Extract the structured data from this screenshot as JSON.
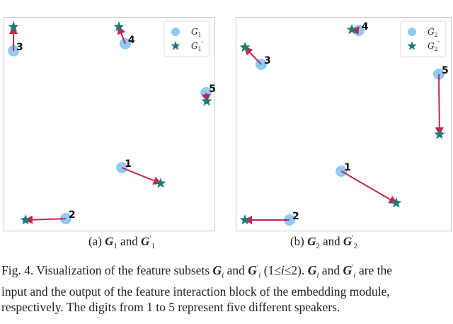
{
  "chart_data": [
    {
      "type": "scatter",
      "legend": [
        "G1",
        "G1'"
      ],
      "legend_placement": "top-right",
      "grid": false,
      "legend_labels": {
        "base": "G",
        "sub": "1",
        "prime": "'"
      },
      "colors": {
        "circle": "#8ecbf5",
        "star": "#1e7b78",
        "arrow": "#c8234e"
      },
      "points": [
        {
          "label": "1",
          "G": [
            55.9,
            29.7
          ],
          "G_prime": [
            74.2,
            22.4
          ]
        },
        {
          "label": "2",
          "G": [
            29.4,
            5.9
          ],
          "G_prime": [
            10.4,
            5.3
          ]
        },
        {
          "label": "3",
          "G": [
            4.7,
            84.2
          ],
          "G_prime": [
            4.7,
            95.4
          ]
        },
        {
          "label": "4",
          "G": [
            57.5,
            87.5
          ],
          "G_prime": [
            54.5,
            95.4
          ]
        },
        {
          "label": "5",
          "G": [
            95.7,
            64.7
          ],
          "G_prime": [
            96.0,
            60.7
          ]
        }
      ]
    },
    {
      "type": "scatter",
      "legend": [
        "G2",
        "G2'"
      ],
      "legend_placement": "top-right",
      "grid": false,
      "legend_labels": {
        "base": "G",
        "sub": "2",
        "prime": "'"
      },
      "colors": {
        "circle": "#8ecbf5",
        "star": "#1e7b78",
        "arrow": "#c8234e"
      },
      "points": [
        {
          "label": "1",
          "G": [
            48.9,
            28.1
          ],
          "G_prime": [
            74.4,
            13.2
          ]
        },
        {
          "label": "2",
          "G": [
            24.9,
            5.3
          ],
          "G_prime": [
            4.3,
            5.3
          ]
        },
        {
          "label": "3",
          "G": [
            11.8,
            77.9
          ],
          "G_prime": [
            4.3,
            85.8
          ]
        },
        {
          "label": "4",
          "G": [
            57.0,
            93.7
          ],
          "G_prime": [
            53.8,
            94.1
          ]
        },
        {
          "label": "5",
          "G": [
            94.1,
            73.3
          ],
          "G_prime": [
            94.4,
            45.2
          ]
        }
      ]
    }
  ],
  "subcaptions": [
    {
      "prefix": "(a) ",
      "g": "G",
      "i": "1",
      "and": " and ",
      "g2": "G",
      "p": "′",
      "i2": "1"
    },
    {
      "prefix": "(b) ",
      "g": "G",
      "i": "2",
      "and": " and ",
      "g2": "G",
      "p": "′",
      "i2": "2"
    }
  ],
  "caption": {
    "l1a": "Fig. 4. Visualization of the feature subsets ",
    "G": "G",
    "i": "i",
    "and": " and ",
    "prime": "′",
    "l1b": " (1≤",
    "l1c": "≤2). ",
    "l1d": " are the",
    "l2": "input and the output of the feature interaction block of the embedding module,",
    "l3": "respectively. The digits from 1 to 5 represent five different speakers."
  }
}
